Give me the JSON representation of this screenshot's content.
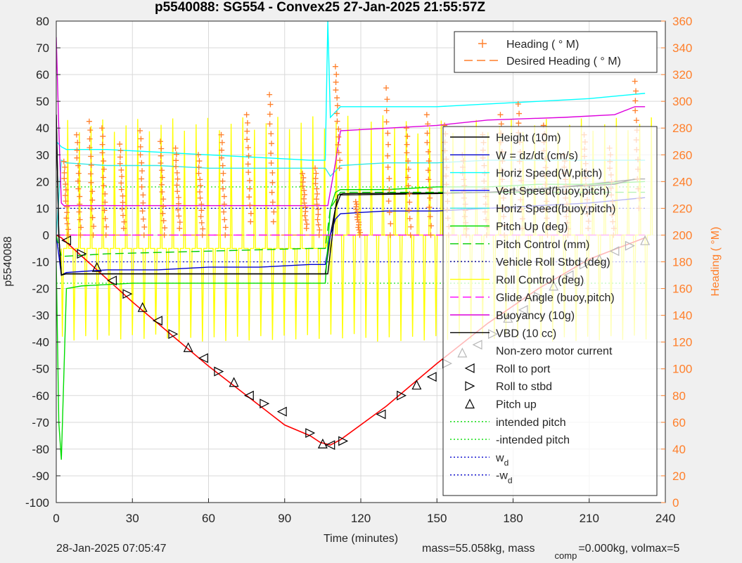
{
  "title": "p5540088: SG554 - Convex25 27-Jan-2025 21:55:57Z",
  "footer": {
    "timestamp": "28-Jan-2025 07:05:47",
    "mass_text": "mass=55.058kg, mass",
    "comp_sub": "comp",
    "volmax_text": "=0.000kg, volmax=5"
  },
  "colors": {
    "heading": "#ff7f2a",
    "depth": "#ff0000",
    "height": "#000000",
    "w": "#0000cc",
    "horiz_w": "#00ffff",
    "vert_buoy": "#0000ff",
    "horiz_buoy": "#33e6e6",
    "pitch_up": "#00dd00",
    "pitch_control": "#00cc00",
    "roll": "#000088",
    "roll_control": "#ffff00",
    "glide": "#ff00ff",
    "buoyancy": "#dd00dd",
    "vbd": "#000000"
  },
  "chart_data": {
    "type": "line",
    "xlabel": "Time (minutes)",
    "ylabel": "p5540088",
    "y2label": "Heading ( °M)",
    "xlim": [
      0,
      240
    ],
    "ylim": [
      -100,
      80
    ],
    "y2lim": [
      0,
      360
    ],
    "xticks": [
      0,
      30,
      60,
      90,
      120,
      150,
      180,
      210,
      240
    ],
    "yticks": [
      -100,
      -90,
      -80,
      -70,
      -60,
      -50,
      -40,
      -30,
      -20,
      -10,
      0,
      10,
      20,
      30,
      40,
      50,
      60,
      70,
      80
    ],
    "y2ticks": [
      0,
      20,
      40,
      60,
      80,
      100,
      120,
      140,
      160,
      180,
      200,
      220,
      240,
      260,
      280,
      300,
      320,
      340,
      360
    ],
    "grid": true,
    "heading_legend": [
      {
        "label": "Heading (  ° M)",
        "marker": "plus"
      },
      {
        "label": "Desired Heading (    ° M)",
        "marker": "dash"
      }
    ],
    "legend": [
      {
        "label": "Height (10m)",
        "style": "solid",
        "color": "#000000"
      },
      {
        "label": "W = dz/dt (cm/s)",
        "style": "solid",
        "color": "#0000cc"
      },
      {
        "label": "Horiz Speed(W,pitch)",
        "style": "solid",
        "color": "#00ffff"
      },
      {
        "label": "Vert Speed(buoy,pitch)",
        "style": "solid",
        "color": "#0000ff"
      },
      {
        "label": "Horiz Speed(buoy,pitch)",
        "style": "solid",
        "color": "#33e6e6"
      },
      {
        "label": "Pitch Up (deg)",
        "style": "solid",
        "color": "#00dd00"
      },
      {
        "label": "Pitch Control (mm)",
        "style": "dash",
        "color": "#00cc00"
      },
      {
        "label": "Vehicle Roll Stbd (deg)",
        "style": "dot",
        "color": "#000088"
      },
      {
        "label": "Roll Control (deg)",
        "style": "solid",
        "color": "#ffff00"
      },
      {
        "label": "Glide Angle (buoy,pitch)",
        "style": "dash",
        "color": "#ff00ff"
      },
      {
        "label": "Buoyancy (10g)",
        "style": "solid",
        "color": "#dd00dd"
      },
      {
        "label": "VBD (10 cc)",
        "style": "solid",
        "color": "#000000"
      },
      {
        "label": "Non-zero motor current",
        "style": "none",
        "color": "#000000"
      },
      {
        "label": "Roll to port",
        "style": "marker-left",
        "color": "#000000"
      },
      {
        "label": "Roll to stbd",
        "style": "marker-right",
        "color": "#000000"
      },
      {
        "label": "Pitch up",
        "style": "marker-up",
        "color": "#000000"
      },
      {
        "label": "intended pitch",
        "style": "dot",
        "color": "#00dd00"
      },
      {
        "label": "-intended pitch",
        "style": "dot",
        "color": "#00dd00"
      },
      {
        "label": "w",
        "sub": "d",
        "style": "dot",
        "color": "#0000cc"
      },
      {
        "label": "-w",
        "sub": "d",
        "style": "dot",
        "color": "#0000cc"
      }
    ],
    "series": [
      {
        "key": "depth",
        "x": [
          0,
          2,
          30,
          60,
          90,
          100,
          104,
          108,
          112,
          130,
          150,
          170,
          190,
          210,
          232
        ],
        "y": [
          0,
          -1,
          -25,
          -49,
          -71,
          -75,
          -77.5,
          -78.5,
          -76.5,
          -64,
          -48,
          -33,
          -20,
          -9,
          -1
        ]
      },
      {
        "key": "height",
        "x": [
          0,
          1,
          2,
          4,
          10,
          20,
          106,
          108,
          110,
          111,
          113,
          180,
          230,
          232
        ],
        "y": [
          45,
          0,
          -15,
          -14.5,
          -14.5,
          -14.5,
          -14.5,
          0,
          10,
          15,
          15.5,
          16,
          21,
          21
        ]
      },
      {
        "key": "w",
        "x": [
          0,
          2,
          4,
          20,
          40,
          60,
          80,
          100,
          106,
          108,
          110,
          112,
          130,
          150,
          170,
          190,
          210,
          232
        ],
        "y": [
          0,
          -15,
          -14,
          -13,
          -13,
          -12,
          -12,
          -11,
          -11,
          0,
          6,
          8,
          9,
          9,
          10,
          11,
          12,
          14
        ]
      },
      {
        "key": "horiz_w",
        "x": [
          0,
          2,
          4,
          20,
          40,
          60,
          80,
          100,
          106,
          107,
          108,
          110,
          112,
          130,
          150,
          170,
          190,
          210,
          232
        ],
        "y": [
          35,
          33,
          32,
          32,
          31,
          30,
          29,
          28,
          28,
          80,
          44,
          46,
          48,
          48,
          48,
          49,
          50,
          51,
          53
        ]
      },
      {
        "key": "horiz_buoy",
        "x": [
          0,
          2,
          4,
          20,
          40,
          60,
          80,
          100,
          106,
          108,
          110,
          112,
          130,
          150,
          170,
          190,
          210,
          232
        ],
        "y": [
          0,
          28,
          27,
          26,
          26,
          25,
          25,
          25,
          25,
          22,
          24,
          26,
          27,
          27,
          28,
          28,
          28,
          28
        ]
      },
      {
        "key": "pitch_up",
        "x": [
          0,
          1,
          2,
          4,
          10,
          30,
          60,
          90,
          106,
          108,
          110,
          112,
          130,
          150,
          170,
          190,
          210,
          232
        ],
        "y": [
          -10,
          -70,
          -84,
          -20,
          -19,
          -18,
          -18,
          -18,
          -18,
          10,
          16,
          17,
          17,
          18,
          18,
          19,
          19,
          20
        ]
      },
      {
        "key": "pitch_control",
        "x": [
          0,
          2,
          20,
          60,
          100,
          106,
          108,
          112,
          150,
          190,
          232
        ],
        "y": [
          0,
          -8,
          -7,
          -6,
          -5,
          -5,
          10,
          16,
          16,
          16,
          16
        ]
      },
      {
        "key": "glide",
        "x": [
          0,
          232
        ],
        "y": [
          0,
          0
        ]
      },
      {
        "key": "buoyancy",
        "x": [
          0,
          1,
          2,
          3,
          106,
          107,
          110,
          112,
          150,
          170,
          200,
          220,
          228,
          232
        ],
        "y": [
          74,
          40,
          12,
          11,
          11,
          11,
          27,
          39,
          41,
          43,
          44,
          45,
          48,
          48
        ]
      },
      {
        "key": "vbd",
        "x": [
          0,
          1,
          2,
          3,
          106,
          107,
          110,
          112,
          150,
          170,
          200,
          220,
          228,
          232
        ],
        "y": [
          45,
          0,
          -15,
          -14.5,
          -14.5,
          -14.5,
          10,
          15,
          15.5,
          16,
          18,
          19,
          21,
          21
        ]
      }
    ],
    "reference_lines": [
      {
        "key": "intended_pitch",
        "y": 18
      },
      {
        "key": "-intended_pitch",
        "y": -18
      },
      {
        "key": "w_d",
        "y": 10
      },
      {
        "key": "-w_d",
        "y": -10
      }
    ],
    "roll_control_pulses": {
      "period_min": 4.6,
      "low": -40,
      "high": 45,
      "start": 2,
      "end": 232
    },
    "heading_desired_deg": 200,
    "heading_bursts": [
      {
        "x": 3,
        "y0": 255,
        "y1": 200
      },
      {
        "x": 8,
        "y0": 275,
        "y1": 200
      },
      {
        "x": 13,
        "y0": 285,
        "y1": 200
      },
      {
        "x": 18,
        "y0": 280,
        "y1": 200
      },
      {
        "x": 25,
        "y0": 268,
        "y1": 205
      },
      {
        "x": 33,
        "y0": 278,
        "y1": 200
      },
      {
        "x": 41,
        "y0": 270,
        "y1": 200
      },
      {
        "x": 47,
        "y0": 265,
        "y1": 205
      },
      {
        "x": 56,
        "y0": 260,
        "y1": 200
      },
      {
        "x": 65,
        "y0": 275,
        "y1": 200
      },
      {
        "x": 75,
        "y0": 290,
        "y1": 210
      },
      {
        "x": 84,
        "y0": 305,
        "y1": 210
      },
      {
        "x": 97,
        "y0": 246,
        "y1": 205
      },
      {
        "x": 102,
        "y0": 250,
        "y1": 200
      },
      {
        "x": 110,
        "y0": 326,
        "y1": 250
      },
      {
        "x": 118,
        "y0": 225,
        "y1": 200
      },
      {
        "x": 130,
        "y0": 310,
        "y1": 200
      },
      {
        "x": 138,
        "y0": 280,
        "y1": 200
      },
      {
        "x": 146,
        "y0": 290,
        "y1": 200
      },
      {
        "x": 153,
        "y0": 282,
        "y1": 200
      },
      {
        "x": 160,
        "y0": 260,
        "y1": 200
      },
      {
        "x": 168,
        "y0": 275,
        "y1": 200
      },
      {
        "x": 175,
        "y0": 290,
        "y1": 200
      },
      {
        "x": 182,
        "y0": 298,
        "y1": 205
      },
      {
        "x": 192,
        "y0": 282,
        "y1": 200
      },
      {
        "x": 200,
        "y0": 260,
        "y1": 200
      },
      {
        "x": 208,
        "y0": 275,
        "y1": 205
      },
      {
        "x": 218,
        "y0": 265,
        "y1": 200
      },
      {
        "x": 228,
        "y0": 315,
        "y1": 220
      }
    ],
    "roll_markers": [
      {
        "x": 4,
        "y": -2,
        "dir": "left"
      },
      {
        "x": 10,
        "y": -7,
        "dir": "right"
      },
      {
        "x": 16,
        "y": -12,
        "dir": "up"
      },
      {
        "x": 22,
        "y": -17,
        "dir": "left"
      },
      {
        "x": 28,
        "y": -22,
        "dir": "right"
      },
      {
        "x": 34,
        "y": -27,
        "dir": "up"
      },
      {
        "x": 40,
        "y": -32,
        "dir": "left"
      },
      {
        "x": 46,
        "y": -37,
        "dir": "right"
      },
      {
        "x": 52,
        "y": -42,
        "dir": "up"
      },
      {
        "x": 58,
        "y": -46,
        "dir": "left"
      },
      {
        "x": 64,
        "y": -51,
        "dir": "right"
      },
      {
        "x": 70,
        "y": -55,
        "dir": "up"
      },
      {
        "x": 76,
        "y": -60,
        "dir": "left"
      },
      {
        "x": 82,
        "y": -63,
        "dir": "right"
      },
      {
        "x": 89,
        "y": -66,
        "dir": "left"
      },
      {
        "x": 100,
        "y": -74,
        "dir": "right"
      },
      {
        "x": 105,
        "y": -78,
        "dir": "up"
      },
      {
        "x": 108,
        "y": -78.5,
        "dir": "left"
      },
      {
        "x": 113,
        "y": -77,
        "dir": "right"
      },
      {
        "x": 128,
        "y": -67,
        "dir": "left"
      },
      {
        "x": 136,
        "y": -60,
        "dir": "right"
      },
      {
        "x": 142,
        "y": -56,
        "dir": "up"
      },
      {
        "x": 148,
        "y": -53,
        "dir": "left"
      },
      {
        "x": 154,
        "y": -48,
        "dir": "right"
      },
      {
        "x": 160,
        "y": -44,
        "dir": "up"
      },
      {
        "x": 166,
        "y": -41,
        "dir": "left"
      },
      {
        "x": 172,
        "y": -37,
        "dir": "right"
      },
      {
        "x": 178,
        "y": -31,
        "dir": "up"
      },
      {
        "x": 184,
        "y": -28,
        "dir": "left"
      },
      {
        "x": 190,
        "y": -23,
        "dir": "right"
      },
      {
        "x": 196,
        "y": -19,
        "dir": "up"
      },
      {
        "x": 202,
        "y": -15,
        "dir": "left"
      },
      {
        "x": 208,
        "y": -11,
        "dir": "right"
      },
      {
        "x": 214,
        "y": -9,
        "dir": "up"
      },
      {
        "x": 220,
        "y": -6,
        "dir": "left"
      },
      {
        "x": 226,
        "y": -4,
        "dir": "right"
      },
      {
        "x": 232,
        "y": -2,
        "dir": "up"
      }
    ]
  }
}
